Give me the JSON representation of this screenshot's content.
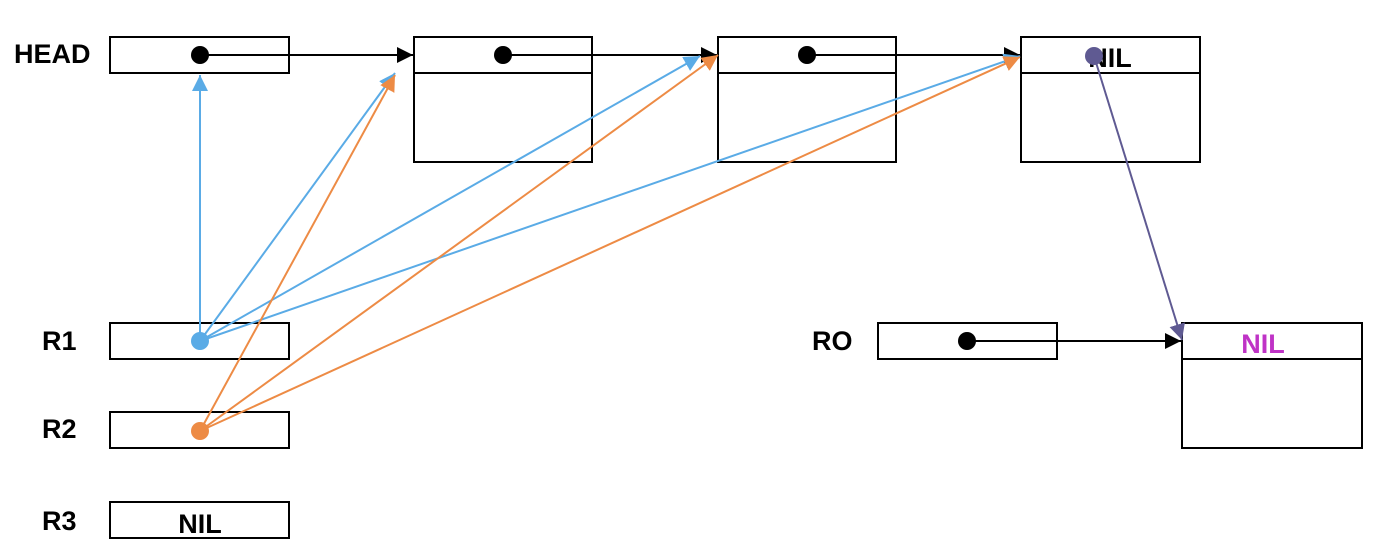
{
  "labels": {
    "head": "HEAD",
    "r1": "R1",
    "r2": "R2",
    "r3": "R3",
    "ro": "RO"
  },
  "nil": {
    "node4": "NIL",
    "ro_target": "NIL",
    "r3": "NIL"
  },
  "colors": {
    "black": "#000000",
    "r1_pointer": "#5aabe6",
    "r2_pointer": "#ed8b45",
    "purple_pointer": "#5f5a92",
    "magenta_nil": "#bf33c6"
  }
}
